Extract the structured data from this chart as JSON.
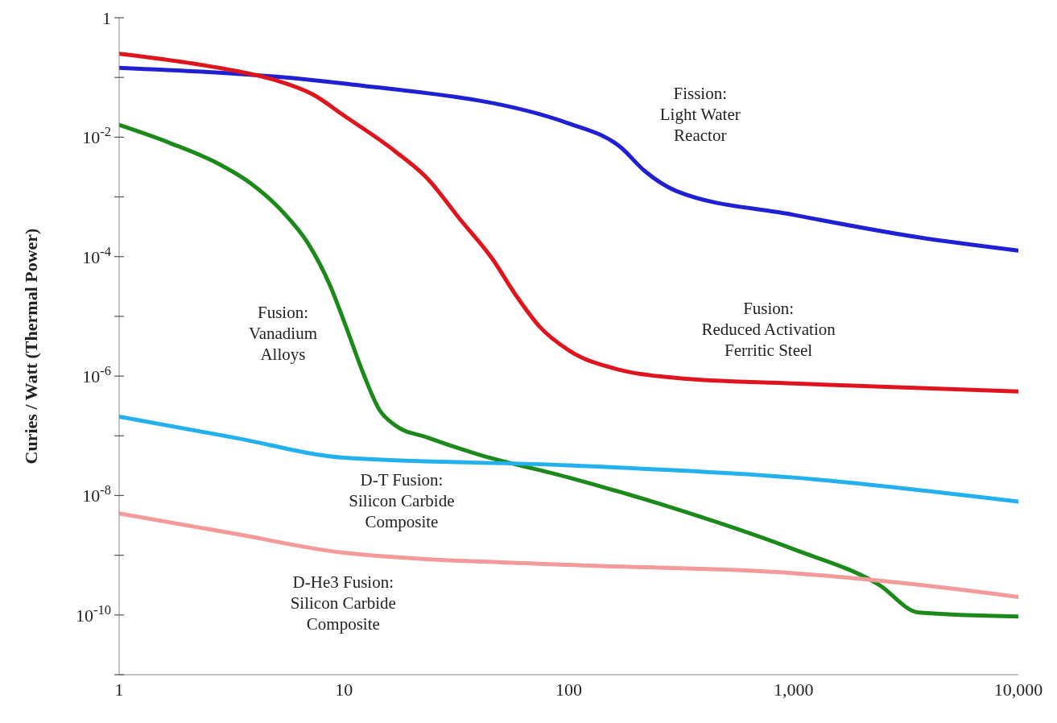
{
  "chart_data": {
    "type": "line",
    "ylabel": "Curies / Watt (Thermal Power)",
    "log": "xy",
    "grid": false,
    "legend": false,
    "marker": "none",
    "line_style": "solid",
    "xlim": [
      1,
      10000
    ],
    "xticks": [
      1,
      10,
      100,
      {
        "value": 1000,
        "label": "1,000"
      },
      {
        "value": 10000,
        "label": "10,000"
      }
    ],
    "ylim": [
      1e-11,
      1
    ],
    "yticks": [
      1,
      {
        "value": 0.1,
        "label": null
      },
      {
        "value": 0.01,
        "label": "10$^{-2}$"
      },
      {
        "value": 0.001,
        "label": null
      },
      {
        "value": 0.0001,
        "label": "10$^{-4}$"
      },
      {
        "value": 1e-05,
        "label": null
      },
      {
        "value": 1e-06,
        "label": "10$^{-6}$"
      },
      {
        "value": 1e-07,
        "label": null
      },
      {
        "value": 1e-08,
        "label": "10$^{-8}$"
      },
      {
        "value": 1e-09,
        "label": null
      },
      {
        "value": 1e-10,
        "label": "10$^{-10}$"
      },
      {
        "value": 1e-11,
        "label": null
      }
    ],
    "series": [
      {
        "color": "#1f1fd6",
        "x": [
          1,
          10,
          100,
          170,
          218,
          300,
          1000,
          3600,
          10000
        ],
        "values": [
          0.145,
          0.079,
          0.017,
          0.0068,
          0.0027,
          0.00126,
          0.0005,
          0.00021,
          0.000126
        ]
      },
      {
        "color": "#e0141c",
        "x": [
          1,
          2.15,
          3.25,
          4.9,
          7.4,
          10,
          16.9,
          23.6,
          32.7,
          45.6,
          58,
          74,
          100,
          170,
          302,
          1000,
          10000
        ],
        "values": [
          0.25,
          0.17,
          0.13,
          0.091,
          0.05,
          0.023,
          0.0058,
          0.002,
          0.00043,
          9.3e-05,
          2.3e-05,
          6.8e-06,
          2.7e-06,
          1.26e-06,
          9.3e-07,
          7.5e-07,
          5.5e-07
        ]
      },
      {
        "color": "#1b8a1b",
        "x": [
          1,
          1.68,
          2.76,
          3.84,
          5.3,
          6.9,
          8.7,
          10.2,
          12.2,
          14.4,
          16.9,
          23.6,
          38.7,
          100,
          302,
          1000,
          2400,
          3600,
          10000
        ],
        "values": [
          0.016,
          0.008,
          0.0036,
          0.0017,
          0.00058,
          0.00017,
          3.2e-05,
          6.8e-06,
          1.1e-06,
          2.7e-07,
          1.5e-07,
          9.3e-08,
          5e-08,
          2e-08,
          5.9e-09,
          1.26e-09,
          3.2e-10,
          1.1e-10,
          9.4e-11
        ]
      },
      {
        "color": "#22b0ee",
        "x": [
          1,
          3.25,
          10,
          100,
          1000,
          10000
        ],
        "values": [
          2.1e-07,
          9.3e-08,
          4.3e-08,
          3.2e-08,
          2e-08,
          7.9e-09
        ]
      },
      {
        "color": "#f59a9a",
        "x": [
          1,
          3.25,
          10,
          100,
          1000,
          3600,
          10000
        ],
        "values": [
          5e-09,
          2.3e-09,
          1.1e-09,
          6.9e-10,
          5e-10,
          3.2e-10,
          2e-10
        ]
      }
    ],
    "annotations": [
      "Fission:\nLight Water\nReactor",
      "Fusion:\nReduced Activation\nFerritic Steel",
      "Fusion:\nVanadium\nAlloys",
      "D-T Fusion:\nSilicon Carbide\nComposite",
      "D-He3 Fusion:\nSilicon Carbide\nComposite"
    ]
  }
}
